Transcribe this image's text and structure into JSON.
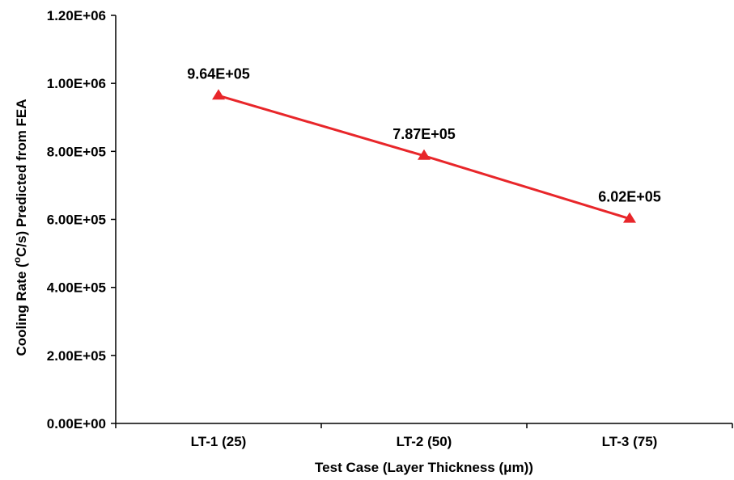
{
  "chart_data": {
    "type": "line",
    "title": "",
    "xlabel": "Test Case (Layer Thickness (μm))",
    "ylabel": "Cooling Rate (°C/s) Predicted from FEA",
    "ylabel_parts": [
      "Cooling Rate (",
      "o",
      "C/s) Predicted from FEA"
    ],
    "categories": [
      "LT-1 (25)",
      "LT-2 (50)",
      "LT-3 (75)"
    ],
    "series": [
      {
        "values": [
          964000,
          787000,
          602000
        ],
        "labels": [
          "9.64E+05",
          "7.87E+05",
          "6.02E+05"
        ],
        "color": "#e8262a",
        "marker": "triangle"
      }
    ],
    "ylim": [
      0,
      1200000
    ],
    "yticks": [
      0,
      200000,
      400000,
      600000,
      800000,
      1000000,
      1200000
    ],
    "ytick_labels": [
      "0.00E+00",
      "2.00E+05",
      "4.00E+05",
      "6.00E+05",
      "8.00E+05",
      "1.00E+06",
      "1.20E+06"
    ],
    "grid": false,
    "legend": "none"
  }
}
